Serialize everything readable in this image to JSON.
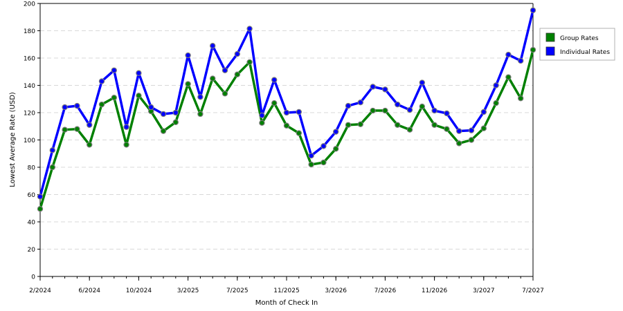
{
  "chart_data": {
    "type": "line",
    "xlabel": "Month of Check In",
    "ylabel": "Lowest Average Rate (USD)",
    "ylim": [
      0,
      200
    ],
    "yticks": [
      0,
      20,
      40,
      60,
      80,
      100,
      120,
      140,
      160,
      180,
      200
    ],
    "xticks": [
      "2/2024",
      "6/2024",
      "10/2024",
      "3/2025",
      "7/2025",
      "11/2025",
      "3/2026",
      "7/2026",
      "11/2026",
      "3/2027",
      "7/2027"
    ],
    "grid": "horizontal-dashed",
    "legend_position": "right",
    "series": [
      {
        "name": "Group Rates",
        "color": "#008000",
        "values": [
          49.5,
          80,
          107.5,
          108,
          96.5,
          126,
          131,
          96.5,
          132.5,
          121,
          106.5,
          113,
          141,
          119,
          145,
          134,
          148,
          157,
          112.5,
          127,
          110.5,
          105,
          82,
          83.5,
          93.5,
          111,
          111.5,
          121.5,
          121.5,
          111,
          107.5,
          124.5,
          111,
          108,
          97.5,
          100,
          108.5,
          127,
          146,
          130.5,
          166
        ]
      },
      {
        "name": "Individual Rates",
        "color": "#0000ff",
        "values": [
          58.5,
          92.5,
          124,
          125,
          111,
          143,
          151,
          109.5,
          149,
          124,
          119,
          120,
          162,
          131.5,
          169,
          151,
          163,
          181.5,
          118,
          144,
          120,
          120.5,
          88.5,
          95.5,
          106,
          125,
          127.5,
          139,
          137,
          126,
          122,
          142,
          121.5,
          119.5,
          106.5,
          107,
          120.5,
          140,
          162.5,
          158,
          195
        ]
      }
    ]
  }
}
